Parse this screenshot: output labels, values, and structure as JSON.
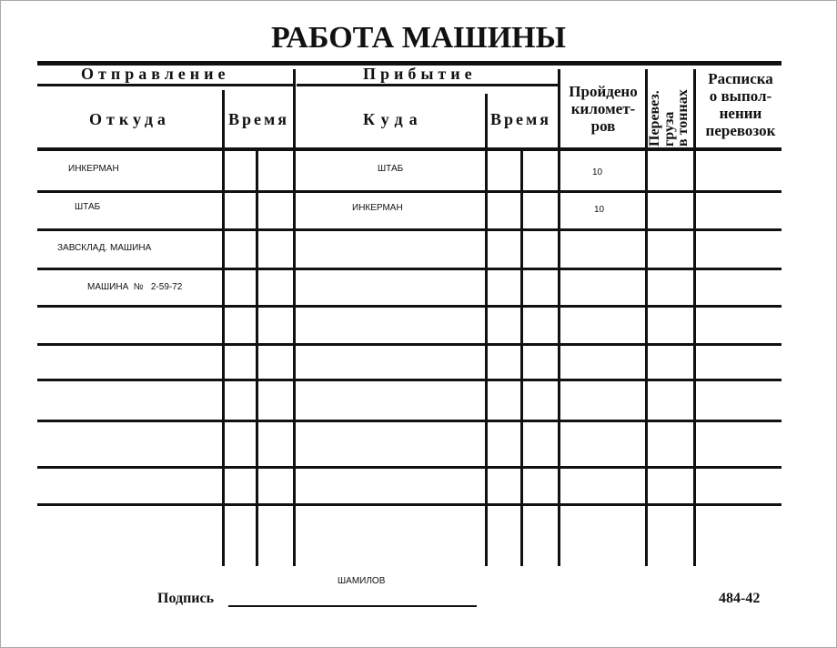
{
  "title": "РАБОТА МАШИНЫ",
  "headers": {
    "departure": "Отправление",
    "arrival": "Прибытие",
    "from": "Откуда",
    "time1": "Время",
    "to": "Куда",
    "time2": "Время",
    "km": [
      "Пройдено",
      "километ-",
      "ров"
    ],
    "cargo": [
      "Перевез.",
      "груза",
      "в тоннах"
    ],
    "receipt": [
      "Расписка",
      "о выпол-",
      "нении",
      "перевозок"
    ]
  },
  "rows": [
    {
      "from": "ИНКЕРМАН",
      "to": "ШТАБ",
      "km": "10"
    },
    {
      "from": "ШТАБ",
      "to": "ИНКЕРМАН",
      "km": "10"
    },
    {
      "from": "ЗАВСКЛАД. МАШИНА",
      "to": "",
      "km": ""
    },
    {
      "from": "МАШИНА  №   2-59-72",
      "to": "",
      "km": ""
    }
  ],
  "footer": {
    "signature_label": "Подпись",
    "signature_value": "ШАМИЛОВ",
    "form_number": "484-42"
  }
}
